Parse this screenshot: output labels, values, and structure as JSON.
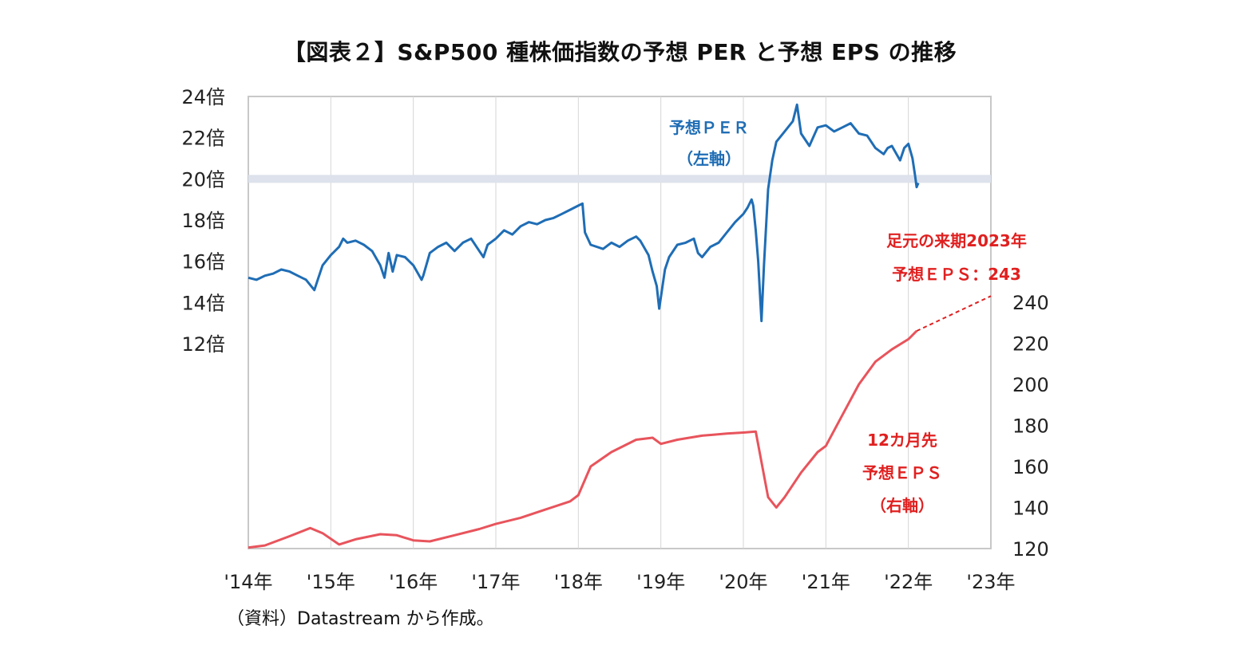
{
  "title": "【図表２】S&P500 種株価指数の予想 PER と予想 EPS の推移",
  "source": "（資料）Datastream から作成。",
  "colors": {
    "per": "#1f6db5",
    "eps": "#e8545c",
    "band": "#dde2ec",
    "grid": "#d6d6d6",
    "annotation_red": "#e02020"
  },
  "annotations": {
    "per_label_1": "予想ＰＥＲ",
    "per_label_2": "（左軸）",
    "eps_label_1": "12カ月先",
    "eps_label_2": "予想ＥＰＳ",
    "eps_label_3": "（右軸）",
    "forecast_label_1": "足元の来期2023年",
    "forecast_label_2": "予想ＥＰＳ：243"
  },
  "chart_data": {
    "type": "line",
    "title": "【図表２】S&P500 種株価指数の予想 PER と予想 EPS の推移",
    "x_ticks": [
      "'14年",
      "'15年",
      "'16年",
      "'17年",
      "'18年",
      "'19年",
      "'20年",
      "'21年",
      "'22年",
      "'23年"
    ],
    "x_range": [
      2014,
      2023
    ],
    "left_axis": {
      "ticks": [
        "24倍",
        "22倍",
        "20倍",
        "18倍",
        "16倍",
        "14倍",
        "12倍"
      ],
      "range": [
        12,
        24
      ]
    },
    "right_axis": {
      "ticks": [
        "240",
        "220",
        "200",
        "180",
        "160",
        "140",
        "120"
      ],
      "range": [
        120,
        240
      ]
    },
    "highlight_band": 20,
    "series": [
      {
        "name": "予想ＰＥＲ",
        "axis": "left",
        "x": [
          2014.0,
          2014.1,
          2014.2,
          2014.3,
          2014.4,
          2014.5,
          2014.6,
          2014.7,
          2014.8,
          2014.85,
          2014.9,
          2015.0,
          2015.1,
          2015.15,
          2015.2,
          2015.3,
          2015.4,
          2015.5,
          2015.6,
          2015.65,
          2015.7,
          2015.75,
          2015.8,
          2015.9,
          2016.0,
          2016.1,
          2016.12,
          2016.2,
          2016.3,
          2016.4,
          2016.5,
          2016.6,
          2016.7,
          2016.8,
          2016.85,
          2016.9,
          2017.0,
          2017.1,
          2017.2,
          2017.3,
          2017.4,
          2017.5,
          2017.6,
          2017.7,
          2017.8,
          2017.9,
          2018.0,
          2018.05,
          2018.08,
          2018.15,
          2018.3,
          2018.4,
          2018.5,
          2018.6,
          2018.7,
          2018.75,
          2018.85,
          2018.9,
          2018.95,
          2018.98,
          2019.05,
          2019.1,
          2019.2,
          2019.3,
          2019.4,
          2019.45,
          2019.5,
          2019.6,
          2019.7,
          2019.8,
          2019.9,
          2020.0,
          2020.05,
          2020.1,
          2020.12,
          2020.15,
          2020.18,
          2020.2,
          2020.22,
          2020.25,
          2020.3,
          2020.35,
          2020.4,
          2020.5,
          2020.6,
          2020.65,
          2020.7,
          2020.8,
          2020.9,
          2021.0,
          2021.1,
          2021.2,
          2021.3,
          2021.4,
          2021.5,
          2021.6,
          2021.7,
          2021.75,
          2021.8,
          2021.9,
          2021.95,
          2022.0,
          2022.05,
          2022.08,
          2022.1,
          2022.12
        ],
        "values": [
          15.2,
          15.1,
          15.3,
          15.4,
          15.6,
          15.5,
          15.3,
          15.1,
          14.6,
          15.2,
          15.8,
          16.3,
          16.7,
          17.1,
          16.9,
          17.0,
          16.8,
          16.5,
          15.8,
          15.2,
          16.4,
          15.5,
          16.3,
          16.2,
          15.8,
          15.1,
          15.3,
          16.4,
          16.7,
          16.9,
          16.5,
          16.9,
          17.1,
          16.5,
          16.2,
          16.8,
          17.1,
          17.5,
          17.3,
          17.7,
          17.9,
          17.8,
          18.0,
          18.1,
          18.3,
          18.5,
          18.7,
          18.8,
          17.4,
          16.8,
          16.6,
          16.9,
          16.7,
          17.0,
          17.2,
          17.0,
          16.3,
          15.5,
          14.8,
          13.7,
          15.6,
          16.2,
          16.8,
          16.9,
          17.1,
          16.4,
          16.2,
          16.7,
          16.9,
          17.4,
          17.9,
          18.3,
          18.6,
          19.0,
          18.7,
          17.5,
          16.0,
          14.5,
          13.1,
          15.8,
          19.5,
          20.9,
          21.8,
          22.3,
          22.8,
          23.6,
          22.2,
          21.6,
          22.5,
          22.6,
          22.3,
          22.5,
          22.7,
          22.2,
          22.1,
          21.5,
          21.2,
          21.5,
          21.6,
          20.9,
          21.5,
          21.7,
          21.0,
          20.2,
          19.6,
          19.8
        ]
      },
      {
        "name": "12カ月先予想ＥＰＳ",
        "axis": "right",
        "x": [
          2014.0,
          2014.2,
          2014.5,
          2014.75,
          2014.9,
          2015.1,
          2015.3,
          2015.6,
          2015.8,
          2016.0,
          2016.2,
          2016.5,
          2016.8,
          2017.0,
          2017.3,
          2017.6,
          2017.9,
          2018.0,
          2018.15,
          2018.4,
          2018.7,
          2018.9,
          2019.0,
          2019.2,
          2019.5,
          2019.8,
          2020.0,
          2020.15,
          2020.3,
          2020.4,
          2020.5,
          2020.7,
          2020.9,
          2021.0,
          2021.2,
          2021.4,
          2021.6,
          2021.8,
          2022.0,
          2022.1
        ],
        "values": [
          120.5,
          121.5,
          126.0,
          130.0,
          127.5,
          122.0,
          124.5,
          127.0,
          126.5,
          124.0,
          123.5,
          126.5,
          129.5,
          132.0,
          135.0,
          139.0,
          143.0,
          146.0,
          160.0,
          167.0,
          173.0,
          174.0,
          171.0,
          173.0,
          175.0,
          176.0,
          176.5,
          177.0,
          145.0,
          140.0,
          145.0,
          157.0,
          167.0,
          170.0,
          185.0,
          200.0,
          211.0,
          217.0,
          222.0,
          226.0
        ]
      },
      {
        "name": "forecast",
        "axis": "right",
        "dashed": true,
        "x": [
          2022.1,
          2023.0
        ],
        "values": [
          226.0,
          243.0
        ]
      }
    ]
  }
}
